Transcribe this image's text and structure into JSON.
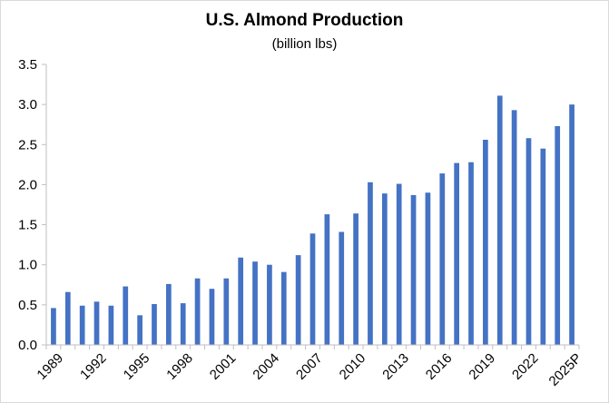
{
  "chart_data": {
    "type": "bar",
    "title": "U.S. Almond Production",
    "subtitle": "(billion lbs)",
    "xlabel": "",
    "ylabel": "",
    "ylim": [
      0,
      3.5
    ],
    "yticks": [
      "0.0",
      "0.5",
      "1.0",
      "1.5",
      "2.0",
      "2.5",
      "3.0",
      "3.5"
    ],
    "xtick_labels": [
      "1989",
      "1992",
      "1995",
      "1998",
      "2001",
      "2004",
      "2007",
      "2010",
      "2013",
      "2016",
      "2019",
      "2022",
      "2025P"
    ],
    "categories": [
      "1989",
      "1990",
      "1991",
      "1992",
      "1993",
      "1994",
      "1995",
      "1996",
      "1997",
      "1998",
      "1999",
      "2000",
      "2001",
      "2002",
      "2003",
      "2004",
      "2005",
      "2006",
      "2007",
      "2008",
      "2009",
      "2010",
      "2011",
      "2012",
      "2013",
      "2014",
      "2015",
      "2016",
      "2017",
      "2018",
      "2019",
      "2020",
      "2021",
      "2022",
      "2023",
      "2024",
      "2025P"
    ],
    "values": [
      0.46,
      0.66,
      0.49,
      0.54,
      0.49,
      0.73,
      0.37,
      0.51,
      0.76,
      0.52,
      0.83,
      0.7,
      0.83,
      1.09,
      1.04,
      1.0,
      0.91,
      1.12,
      1.39,
      1.63,
      1.41,
      1.64,
      2.03,
      1.89,
      2.01,
      1.87,
      1.9,
      2.14,
      2.27,
      2.28,
      2.56,
      3.11,
      2.93,
      2.58,
      2.45,
      2.73,
      3.0
    ],
    "bar_color": "#4472C4",
    "grid": false,
    "legend": "none"
  }
}
